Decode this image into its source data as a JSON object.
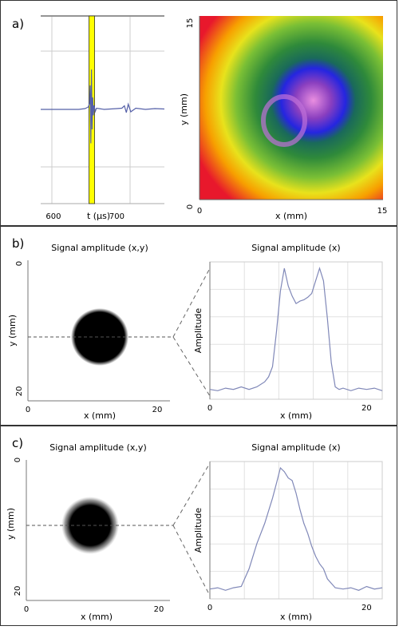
{
  "panels": {
    "a": {
      "label": "a)"
    },
    "b": {
      "label": "b)"
    },
    "c": {
      "label": "c)"
    }
  },
  "chart_data": [
    {
      "id": "a-waveform",
      "type": "line",
      "xlabel": "t (µs)",
      "x_ticks": [
        600,
        700
      ],
      "xlim": [
        580,
        775
      ],
      "gate_highlight": {
        "range": [
          656,
          665
        ],
        "color": "#ffff00"
      },
      "grid": true,
      "series": [
        {
          "color": "#5560a8",
          "x": [
            580,
            600,
            620,
            640,
            650,
            655,
            657,
            658,
            659,
            660,
            661,
            662,
            663,
            664,
            666,
            668,
            672,
            680,
            690,
            700,
            708,
            712,
            715,
            718,
            722,
            730,
            745,
            760,
            775
          ],
          "y": [
            0,
            0,
            0,
            0,
            0.02,
            0.06,
            0.15,
            0.6,
            -0.85,
            1.0,
            -0.5,
            0.3,
            -0.15,
            0.1,
            -0.05,
            0.03,
            0.02,
            0,
            0.01,
            0.02,
            0.03,
            0.09,
            -0.08,
            0.13,
            -0.06,
            0.03,
            0,
            0.02,
            0.01
          ]
        }
      ]
    },
    {
      "id": "a-cscan",
      "type": "heatmap",
      "xlabel": "x (mm)",
      "ylabel": "y (mm)",
      "x_ticks": [
        0,
        15
      ],
      "y_ticks": [
        0,
        15
      ],
      "xlim": [
        0,
        15
      ],
      "ylim": [
        0,
        15
      ],
      "colormap": [
        "#e8182c",
        "#f7a000",
        "#f3e800",
        "#b9dc2a",
        "#5fae2e",
        "#1f7d3a",
        "#1a1ad6",
        "#8a3fbf",
        "#e98ee0"
      ]
    },
    {
      "id": "b-map",
      "type": "heatmap",
      "title": "Signal amplitude (x,y)",
      "xlabel": "x (mm)",
      "ylabel": "y (mm)",
      "x_ticks": [
        0,
        20
      ],
      "y_ticks": [
        0,
        20
      ],
      "xlim": [
        0,
        22
      ],
      "ylim": [
        0,
        22
      ]
    },
    {
      "id": "b-profile",
      "type": "line",
      "title": "Signal amplitude (x)",
      "xlabel": "x (mm)",
      "ylabel": "Amplitude",
      "x_ticks": [
        0,
        20
      ],
      "xlim": [
        0,
        22
      ],
      "grid": true,
      "series": [
        {
          "color": "#8088b8",
          "x": [
            0,
            1,
            2,
            3,
            4,
            5,
            6,
            7,
            7.5,
            8,
            8.5,
            9,
            9.5,
            10,
            10.5,
            11,
            11.5,
            12,
            12.5,
            13,
            13.5,
            14,
            14.5,
            15,
            15.5,
            16,
            16.5,
            17,
            18,
            19,
            20,
            21,
            22
          ],
          "y": [
            0.04,
            0.03,
            0.05,
            0.04,
            0.06,
            0.04,
            0.06,
            0.1,
            0.14,
            0.22,
            0.5,
            0.82,
            1.0,
            0.86,
            0.78,
            0.72,
            0.74,
            0.75,
            0.77,
            0.8,
            0.9,
            1.0,
            0.9,
            0.6,
            0.25,
            0.06,
            0.04,
            0.05,
            0.03,
            0.05,
            0.04,
            0.05,
            0.03
          ]
        }
      ]
    },
    {
      "id": "c-map",
      "type": "heatmap",
      "title": "Signal amplitude (x,y)",
      "xlabel": "x (mm)",
      "ylabel": "y (mm)",
      "x_ticks": [
        0,
        20
      ],
      "y_ticks": [
        0,
        20
      ],
      "xlim": [
        0,
        22
      ],
      "ylim": [
        0,
        22
      ]
    },
    {
      "id": "c-profile",
      "type": "line",
      "title": "Signal amplitude (x)",
      "xlabel": "x (mm)",
      "ylabel": "Amplitude",
      "x_ticks": [
        0,
        20
      ],
      "xlim": [
        0,
        22
      ],
      "grid": true,
      "series": [
        {
          "color": "#8088b8",
          "x": [
            0,
            1,
            2,
            3,
            4,
            5,
            6,
            7,
            8,
            8.5,
            9,
            9.5,
            10,
            10.5,
            11,
            11.5,
            12,
            12.5,
            13,
            13.5,
            14,
            14.5,
            15,
            16,
            17,
            18,
            19,
            20,
            21,
            22
          ],
          "y": [
            0.04,
            0.05,
            0.03,
            0.05,
            0.06,
            0.2,
            0.4,
            0.56,
            0.76,
            0.88,
            1.0,
            0.97,
            0.92,
            0.9,
            0.8,
            0.67,
            0.56,
            0.48,
            0.38,
            0.3,
            0.24,
            0.2,
            0.12,
            0.05,
            0.04,
            0.05,
            0.03,
            0.06,
            0.04,
            0.05
          ]
        }
      ]
    }
  ]
}
